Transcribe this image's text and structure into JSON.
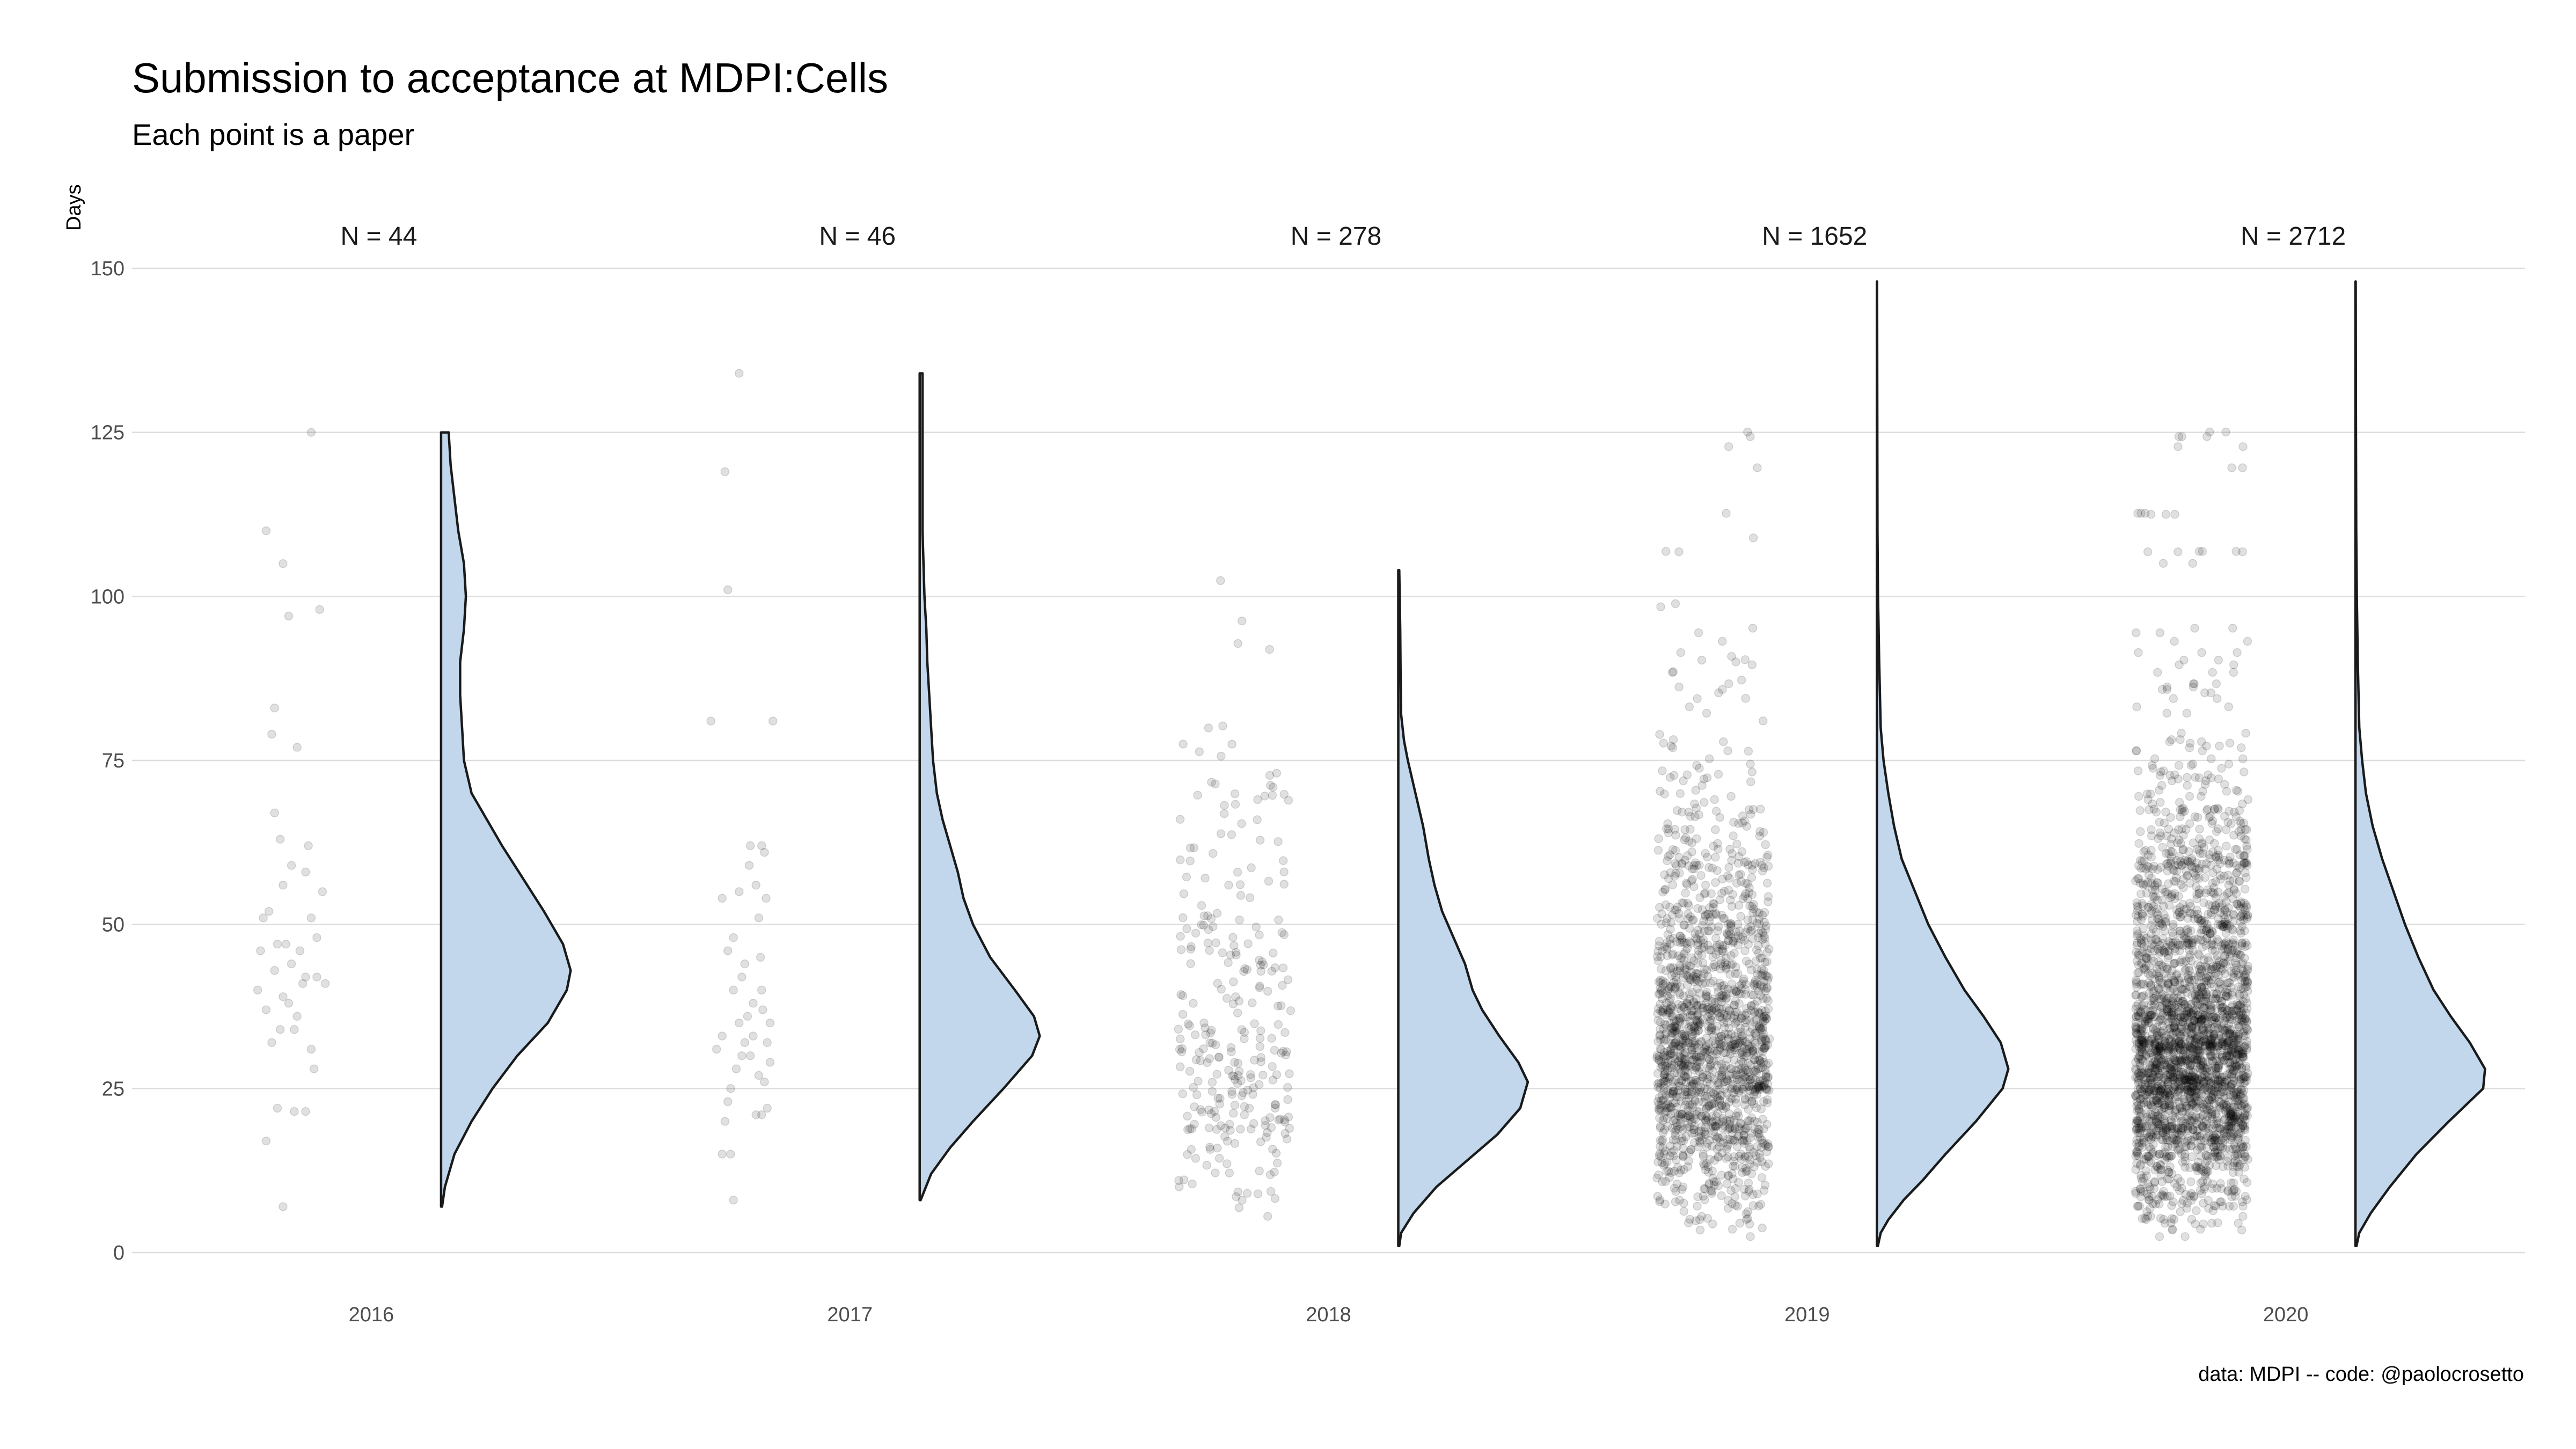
{
  "chart_data": {
    "type": "raincloud",
    "title": "Submission to acceptance at MDPI:Cells",
    "subtitle": "Each point is a paper",
    "ylabel": "Days",
    "xlabel": "",
    "caption": "data: MDPI -- code: @paolocrosetto",
    "ylim": [
      0,
      150
    ],
    "yticks": [
      0,
      25,
      50,
      75,
      100,
      125,
      150
    ],
    "grid": true,
    "legend": "none",
    "colors": {
      "violin_fill": "#c2d7eb",
      "violin_stroke": "#1a1a1a",
      "points": "#000000",
      "grid": "#dddddd"
    },
    "panels": [
      {
        "year": "2016",
        "n_label": "N = 44",
        "n": 44,
        "range": [
          7,
          125
        ],
        "density": [
          [
            7,
            0.05
          ],
          [
            10,
            0.2
          ],
          [
            15,
            0.7
          ],
          [
            20,
            1.6
          ],
          [
            25,
            2.7
          ],
          [
            30,
            4.0
          ],
          [
            35,
            5.6
          ],
          [
            40,
            6.6
          ],
          [
            43,
            6.8
          ],
          [
            47,
            6.4
          ],
          [
            52,
            5.4
          ],
          [
            57,
            4.3
          ],
          [
            62,
            3.2
          ],
          [
            67,
            2.2
          ],
          [
            70,
            1.6
          ],
          [
            75,
            1.2
          ],
          [
            80,
            1.1
          ],
          [
            85,
            1.0
          ],
          [
            90,
            1.0
          ],
          [
            95,
            1.2
          ],
          [
            100,
            1.3
          ],
          [
            105,
            1.2
          ],
          [
            110,
            0.9
          ],
          [
            115,
            0.7
          ],
          [
            120,
            0.5
          ],
          [
            125,
            0.4
          ]
        ],
        "points": [
          [
            0.1,
            7
          ],
          [
            -0.2,
            17
          ],
          [
            0.0,
            22
          ],
          [
            0.3,
            21.5
          ],
          [
            0.5,
            21.5
          ],
          [
            -0.1,
            32
          ],
          [
            0.3,
            34
          ],
          [
            0.6,
            31
          ],
          [
            0.1,
            39
          ],
          [
            -0.2,
            37
          ],
          [
            0.5,
            42
          ],
          [
            0.7,
            42
          ],
          [
            -0.05,
            43
          ],
          [
            0.25,
            44
          ],
          [
            0.45,
            41
          ],
          [
            0.85,
            41
          ],
          [
            0.0,
            47
          ],
          [
            0.15,
            47
          ],
          [
            -0.3,
            46
          ],
          [
            0.4,
            46
          ],
          [
            0.6,
            51
          ],
          [
            -0.15,
            52
          ],
          [
            0.1,
            56
          ],
          [
            0.5,
            58
          ],
          [
            -0.25,
            51
          ],
          [
            0.7,
            48
          ],
          [
            0.25,
            59
          ],
          [
            0.05,
            63
          ],
          [
            0.55,
            62
          ],
          [
            -0.05,
            67
          ],
          [
            -0.1,
            79
          ],
          [
            0.35,
            77
          ],
          [
            -0.05,
            83
          ],
          [
            0.2,
            97
          ],
          [
            0.75,
            98
          ],
          [
            0.1,
            105
          ],
          [
            -0.2,
            110
          ],
          [
            0.6,
            125
          ],
          [
            0.05,
            34
          ],
          [
            0.35,
            36
          ],
          [
            0.65,
            28
          ],
          [
            -0.35,
            40
          ],
          [
            0.2,
            38
          ],
          [
            0.8,
            55
          ]
        ]
      },
      {
        "year": "2017",
        "n_label": "N = 46",
        "n": 46,
        "range": [
          8,
          134
        ],
        "density": [
          [
            8,
            0.05
          ],
          [
            12,
            0.6
          ],
          [
            16,
            1.6
          ],
          [
            20,
            2.8
          ],
          [
            25,
            4.4
          ],
          [
            30,
            5.9
          ],
          [
            33,
            6.3
          ],
          [
            36,
            6.0
          ],
          [
            40,
            5.0
          ],
          [
            45,
            3.7
          ],
          [
            50,
            2.8
          ],
          [
            54,
            2.3
          ],
          [
            58,
            2.0
          ],
          [
            62,
            1.6
          ],
          [
            66,
            1.2
          ],
          [
            70,
            0.9
          ],
          [
            75,
            0.7
          ],
          [
            80,
            0.6
          ],
          [
            85,
            0.5
          ],
          [
            90,
            0.4
          ],
          [
            95,
            0.35
          ],
          [
            100,
            0.25
          ],
          [
            105,
            0.2
          ],
          [
            110,
            0.15
          ],
          [
            120,
            0.15
          ],
          [
            127,
            0.15
          ],
          [
            134,
            0.15
          ]
        ],
        "points": [
          [
            -0.8,
            81
          ],
          [
            -0.3,
            134
          ],
          [
            -0.55,
            119
          ],
          [
            -0.5,
            101
          ],
          [
            -0.4,
            8
          ],
          [
            0.1,
            21
          ],
          [
            -0.6,
            15
          ],
          [
            -0.45,
            15
          ],
          [
            -0.55,
            20
          ],
          [
            -0.5,
            23
          ],
          [
            -0.7,
            31
          ],
          [
            -0.6,
            33
          ],
          [
            -0.3,
            35
          ],
          [
            -0.2,
            32
          ],
          [
            -0.1,
            30
          ],
          [
            0.05,
            27
          ],
          [
            0.15,
            26
          ],
          [
            -0.4,
            40
          ],
          [
            -0.2,
            44
          ],
          [
            -0.05,
            38
          ],
          [
            0.2,
            32
          ],
          [
            0.25,
            29
          ],
          [
            -0.5,
            46
          ],
          [
            -0.4,
            48
          ],
          [
            -0.3,
            55
          ],
          [
            -0.6,
            54
          ],
          [
            0.0,
            56
          ],
          [
            0.1,
            62
          ],
          [
            -0.1,
            62
          ],
          [
            0.15,
            61
          ],
          [
            0.3,
            81
          ],
          [
            0.05,
            51
          ],
          [
            -0.25,
            42
          ],
          [
            -0.15,
            36
          ],
          [
            0.25,
            35
          ],
          [
            0.1,
            40
          ],
          [
            -0.35,
            28
          ],
          [
            0.0,
            21
          ],
          [
            0.2,
            22
          ],
          [
            -0.05,
            33
          ],
          [
            0.12,
            37
          ],
          [
            -0.45,
            25
          ],
          [
            -0.25,
            30
          ],
          [
            0.08,
            45
          ],
          [
            0.18,
            54
          ],
          [
            -0.12,
            59
          ]
        ]
      },
      {
        "year": "2018",
        "n_label": "N = 278",
        "n": 278,
        "range": [
          1,
          104
        ],
        "density": [
          [
            1,
            0.05
          ],
          [
            3,
            0.15
          ],
          [
            6,
            0.8
          ],
          [
            10,
            2.0
          ],
          [
            14,
            3.6
          ],
          [
            18,
            5.2
          ],
          [
            22,
            6.4
          ],
          [
            26,
            6.8
          ],
          [
            29,
            6.3
          ],
          [
            33,
            5.3
          ],
          [
            37,
            4.4
          ],
          [
            40,
            3.9
          ],
          [
            44,
            3.5
          ],
          [
            48,
            2.9
          ],
          [
            52,
            2.3
          ],
          [
            56,
            1.9
          ],
          [
            60,
            1.6
          ],
          [
            65,
            1.3
          ],
          [
            70,
            0.9
          ],
          [
            75,
            0.5
          ],
          [
            78,
            0.3
          ],
          [
            82,
            0.15
          ],
          [
            88,
            0.12
          ],
          [
            95,
            0.1
          ],
          [
            104,
            0.05
          ]
        ],
        "points": []
      },
      {
        "year": "2019",
        "n_label": "N = 1652",
        "n": 1652,
        "range": [
          1,
          148
        ],
        "density": [
          [
            1,
            0.05
          ],
          [
            3,
            0.2
          ],
          [
            5,
            0.6
          ],
          [
            8,
            1.4
          ],
          [
            11,
            2.4
          ],
          [
            15,
            3.6
          ],
          [
            20,
            5.2
          ],
          [
            25,
            6.6
          ],
          [
            28,
            6.9
          ],
          [
            32,
            6.5
          ],
          [
            36,
            5.6
          ],
          [
            40,
            4.6
          ],
          [
            45,
            3.6
          ],
          [
            50,
            2.7
          ],
          [
            55,
            2.0
          ],
          [
            60,
            1.3
          ],
          [
            65,
            0.9
          ],
          [
            70,
            0.6
          ],
          [
            75,
            0.35
          ],
          [
            80,
            0.2
          ],
          [
            90,
            0.12
          ],
          [
            100,
            0.06
          ],
          [
            110,
            0.03
          ],
          [
            130,
            0.02
          ],
          [
            148,
            0.01
          ]
        ],
        "points": []
      },
      {
        "year": "2020",
        "n_label": "N = 2712",
        "n": 2712,
        "range": [
          1,
          148
        ],
        "density": [
          [
            1,
            0.05
          ],
          [
            3,
            0.2
          ],
          [
            6,
            0.8
          ],
          [
            10,
            1.8
          ],
          [
            15,
            3.2
          ],
          [
            20,
            4.9
          ],
          [
            25,
            6.7
          ],
          [
            28,
            6.8
          ],
          [
            32,
            6.0
          ],
          [
            36,
            5.0
          ],
          [
            40,
            4.1
          ],
          [
            45,
            3.3
          ],
          [
            50,
            2.6
          ],
          [
            55,
            2.0
          ],
          [
            60,
            1.4
          ],
          [
            65,
            0.9
          ],
          [
            70,
            0.55
          ],
          [
            75,
            0.35
          ],
          [
            80,
            0.2
          ],
          [
            90,
            0.12
          ],
          [
            100,
            0.07
          ],
          [
            110,
            0.04
          ],
          [
            130,
            0.02
          ],
          [
            148,
            0.01
          ]
        ],
        "points": []
      }
    ]
  }
}
